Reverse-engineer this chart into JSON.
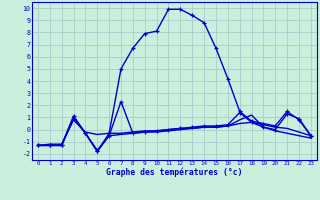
{
  "title": "Graphe des températures (°c)",
  "bg_color": "#cceedd",
  "grid_color": "#aacccc",
  "line_color": "#0000cc",
  "xlim": [
    -0.5,
    23.5
  ],
  "ylim": [
    -2.5,
    10.5
  ],
  "xticks": [
    0,
    1,
    2,
    3,
    4,
    5,
    6,
    7,
    8,
    9,
    10,
    11,
    12,
    13,
    14,
    15,
    16,
    17,
    18,
    19,
    20,
    21,
    22,
    23
  ],
  "yticks": [
    -2,
    -1,
    0,
    1,
    2,
    3,
    4,
    5,
    6,
    7,
    8,
    9,
    10
  ],
  "series": [
    {
      "x": [
        0,
        1,
        2,
        3,
        4,
        5,
        6,
        7,
        8,
        9,
        10,
        11,
        12,
        13,
        14,
        15,
        16,
        17,
        18,
        19,
        20,
        21,
        22,
        23
      ],
      "y": [
        -1.3,
        -1.3,
        -1.3,
        1.1,
        -0.3,
        -1.8,
        -0.3,
        5.0,
        6.7,
        7.9,
        8.1,
        9.9,
        9.9,
        9.4,
        8.8,
        6.7,
        4.2,
        1.5,
        0.7,
        0.5,
        0.3,
        1.5,
        0.8,
        -0.5
      ],
      "marker": true,
      "lw": 1.0
    },
    {
      "x": [
        0,
        1,
        2,
        3,
        4,
        5,
        6,
        7,
        8,
        9,
        10,
        11,
        12,
        13,
        14,
        15,
        16,
        17,
        18,
        19,
        20,
        21,
        22,
        23
      ],
      "y": [
        -1.3,
        -1.3,
        -1.3,
        1.1,
        -0.3,
        -1.7,
        -0.5,
        -0.4,
        -0.3,
        -0.2,
        -0.2,
        -0.1,
        0.0,
        0.1,
        0.2,
        0.2,
        0.3,
        0.5,
        0.6,
        0.4,
        0.2,
        0.1,
        -0.2,
        -0.5
      ],
      "marker": false,
      "lw": 1.0
    },
    {
      "x": [
        0,
        1,
        2,
        3,
        4,
        5,
        6,
        7,
        8,
        9,
        10,
        11,
        12,
        13,
        14,
        15,
        16,
        17,
        18,
        19,
        20,
        21,
        22,
        23
      ],
      "y": [
        -1.3,
        -1.2,
        -1.2,
        0.8,
        -0.2,
        -0.4,
        -0.3,
        -0.3,
        -0.2,
        -0.1,
        -0.1,
        0.0,
        0.1,
        0.1,
        0.2,
        0.2,
        0.3,
        0.8,
        1.2,
        0.2,
        -0.1,
        -0.3,
        -0.5,
        -0.7
      ],
      "marker": false,
      "lw": 1.0
    },
    {
      "x": [
        0,
        1,
        2,
        3,
        4,
        5,
        6,
        7,
        8,
        9,
        10,
        11,
        12,
        13,
        14,
        15,
        16,
        17,
        18,
        19,
        20,
        21,
        22,
        23
      ],
      "y": [
        -1.3,
        -1.3,
        -1.3,
        0.9,
        -0.3,
        -1.8,
        -0.5,
        2.3,
        -0.3,
        -0.2,
        -0.1,
        0.0,
        0.1,
        0.2,
        0.3,
        0.3,
        0.4,
        1.4,
        0.6,
        0.2,
        0.0,
        1.3,
        0.9,
        -0.5
      ],
      "marker": true,
      "lw": 1.0
    }
  ]
}
